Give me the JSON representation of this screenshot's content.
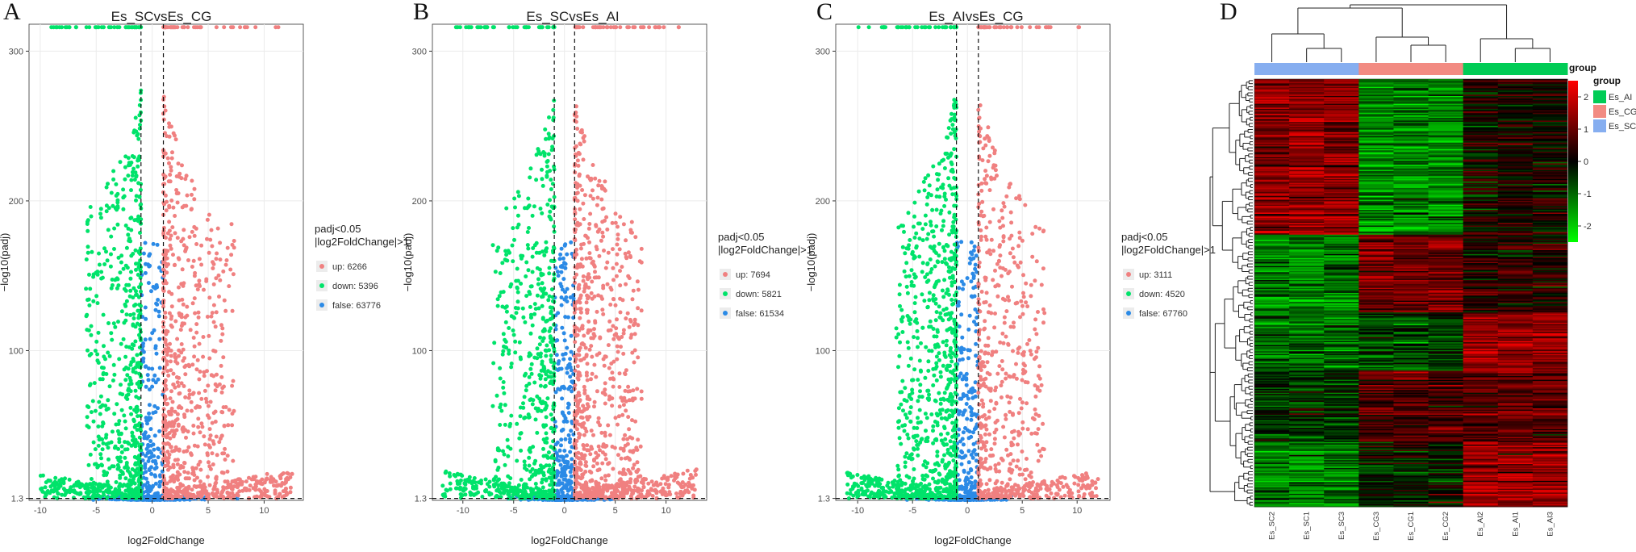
{
  "chart_data": [
    {
      "type": "scatter",
      "panel": "A",
      "title": "Es_SCvsEs_CG",
      "xlabel": "log2FoldChange",
      "ylabel": "−log10(padj)",
      "xlim": [
        -11,
        13.5
      ],
      "ylim": [
        0,
        318
      ],
      "xticks": [
        -10,
        -5,
        0,
        5,
        10
      ],
      "yticks": [
        1.3,
        100,
        200,
        300
      ],
      "fc_threshold": 1,
      "padj_line": 1.3,
      "legend": {
        "title_line1": "padj<0.05",
        "title_line2": "|log2FoldChange|>1",
        "placement": "right",
        "entries": [
          {
            "key": "up",
            "label": "up: 6266",
            "color": "#f08080"
          },
          {
            "key": "down",
            "label": "down: 5396",
            "color": "#00e36a"
          },
          {
            "key": "false",
            "label": "false: 63776",
            "color": "#2b8ae6"
          }
        ]
      },
      "counts": {
        "up": 6266,
        "down": 5396,
        "false": 63776
      }
    },
    {
      "type": "scatter",
      "panel": "B",
      "title": "Es_SCvsEs_AI",
      "xlabel": "log2FoldChange",
      "ylabel": "−log10(padj)",
      "xlim": [
        -13,
        14
      ],
      "ylim": [
        0,
        318
      ],
      "xticks": [
        -10,
        -5,
        0,
        5,
        10
      ],
      "yticks": [
        1.3,
        100,
        200,
        300
      ],
      "fc_threshold": 1,
      "padj_line": 1.3,
      "legend": {
        "title_line1": "padj<0.05",
        "title_line2": "|log2FoldChange|>1",
        "placement": "right",
        "entries": [
          {
            "key": "up",
            "label": "up: 7694",
            "color": "#f08080"
          },
          {
            "key": "down",
            "label": "down: 5821",
            "color": "#00e36a"
          },
          {
            "key": "false",
            "label": "false: 61534",
            "color": "#2b8ae6"
          }
        ]
      },
      "counts": {
        "up": 7694,
        "down": 5821,
        "false": 61534
      }
    },
    {
      "type": "scatter",
      "panel": "C",
      "title": "Es_AIvsEs_CG",
      "xlabel": "log2FoldChange",
      "ylabel": "−log10(padj)",
      "xlim": [
        -12,
        13
      ],
      "ylim": [
        0,
        318
      ],
      "xticks": [
        -10,
        -5,
        0,
        5,
        10
      ],
      "yticks": [
        1.3,
        100,
        200,
        300
      ],
      "fc_threshold": 1,
      "padj_line": 1.3,
      "legend": {
        "title_line1": "padj<0.05",
        "title_line2": "|log2FoldChange|>1",
        "placement": "right",
        "entries": [
          {
            "key": "up",
            "label": "up: 3111",
            "color": "#f08080"
          },
          {
            "key": "down",
            "label": "down: 4520",
            "color": "#00e36a"
          },
          {
            "key": "false",
            "label": "false: 67760",
            "color": "#2b8ae6"
          }
        ]
      },
      "counts": {
        "up": 3111,
        "down": 4520,
        "false": 67760
      }
    },
    {
      "type": "heatmap",
      "panel": "D",
      "columns": [
        "Es_SC2",
        "Es_SC1",
        "Es_SC3",
        "Es_CG3",
        "Es_CG1",
        "Es_CG2",
        "Es_AI2",
        "Es_AI1",
        "Es_AI3"
      ],
      "column_groups": [
        "Es_SC",
        "Es_SC",
        "Es_SC",
        "Es_CG",
        "Es_CG",
        "Es_CG",
        "Es_AI",
        "Es_AI",
        "Es_AI"
      ],
      "group_legend": {
        "title": "group",
        "entries": [
          {
            "label": "Es_AI",
            "color": "#00cc55"
          },
          {
            "label": "Es_CG",
            "color": "#f28b82"
          },
          {
            "label": "Es_SC",
            "color": "#86aef0"
          }
        ]
      },
      "color_scale": {
        "ticks": [
          2,
          1,
          0,
          -1,
          -2
        ],
        "min": -2.5,
        "max": 2.5,
        "high": "#ff0000",
        "mid": "#000000",
        "low": "#00ff00"
      },
      "cluster_blocks": [
        {
          "rows": 120,
          "SC": 1.4,
          "CG": -1.3,
          "AI": 0.1
        },
        {
          "rows": 60,
          "SC": -1.2,
          "CG": 1.1,
          "AI": 0.3
        },
        {
          "rows": 45,
          "SC": -0.9,
          "CG": -0.6,
          "AI": 1.5
        },
        {
          "rows": 55,
          "SC": -0.4,
          "CG": 0.8,
          "AI": 0.9
        },
        {
          "rows": 50,
          "SC": -1.3,
          "CG": -0.2,
          "AI": 1.4
        }
      ]
    }
  ]
}
